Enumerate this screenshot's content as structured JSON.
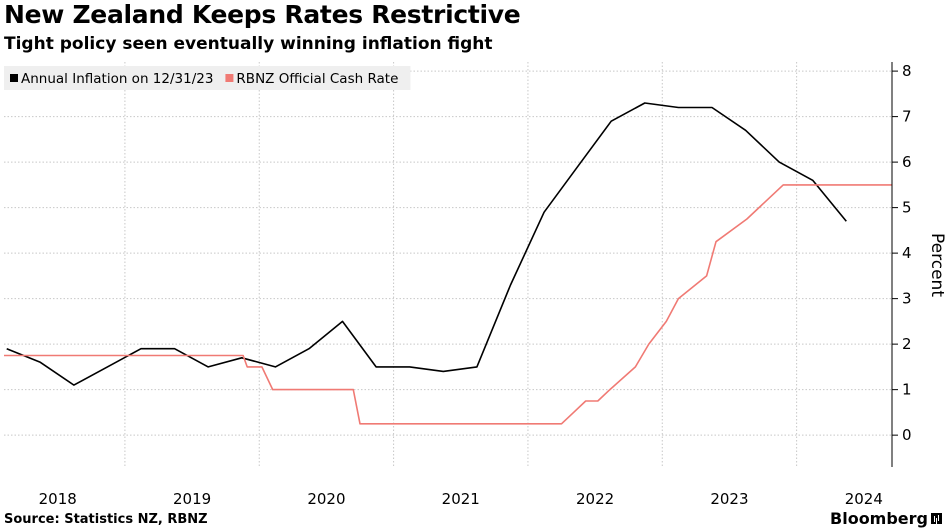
{
  "title": "New Zealand Keeps Rates Restrictive",
  "subtitle": "Tight policy seen eventually winning inflation fight",
  "source": "Source: Statistics NZ, RBNZ",
  "brand": "Bloomberg",
  "colors": {
    "inflation": "#000000",
    "cash_rate": "#f07a74",
    "grid": "#c8c8c8",
    "legend_bg": "#efefef"
  },
  "chart_data": {
    "type": "line",
    "ylabel": "Percent",
    "ylim": [
      -0.7,
      8.2
    ],
    "yticks": [
      0,
      1,
      2,
      3,
      4,
      5,
      6,
      7,
      8
    ],
    "xlim": [
      2017.6,
      2024.21
    ],
    "xticks": [
      2018,
      2019,
      2020,
      2021,
      2022,
      2023,
      2024
    ],
    "grid": true,
    "y_axis_position": "right",
    "legend_position": "top-left",
    "series": [
      {
        "name": "Annual Inflation on 12/31/23",
        "color": "#000000",
        "points": [
          [
            2017.62,
            1.9
          ],
          [
            2017.87,
            1.6
          ],
          [
            2018.12,
            1.1
          ],
          [
            2018.37,
            1.5
          ],
          [
            2018.62,
            1.9
          ],
          [
            2018.87,
            1.9
          ],
          [
            2019.12,
            1.5
          ],
          [
            2019.37,
            1.7
          ],
          [
            2019.62,
            1.5
          ],
          [
            2019.87,
            1.9
          ],
          [
            2020.12,
            2.5
          ],
          [
            2020.37,
            1.5
          ],
          [
            2020.62,
            1.5
          ],
          [
            2020.87,
            1.4
          ],
          [
            2021.12,
            1.5
          ],
          [
            2021.37,
            3.3
          ],
          [
            2021.62,
            4.9
          ],
          [
            2021.87,
            5.9
          ],
          [
            2022.12,
            6.9
          ],
          [
            2022.37,
            7.3
          ],
          [
            2022.62,
            7.2
          ],
          [
            2022.87,
            7.2
          ],
          [
            2023.12,
            6.7
          ],
          [
            2023.37,
            6.0
          ],
          [
            2023.62,
            5.6
          ],
          [
            2023.87,
            4.7
          ]
        ]
      },
      {
        "name": "RBNZ Official Cash Rate",
        "color": "#f07a74",
        "points": [
          [
            2017.6,
            1.75
          ],
          [
            2019.38,
            1.75
          ],
          [
            2019.41,
            1.5
          ],
          [
            2019.52,
            1.5
          ],
          [
            2019.6,
            1.0
          ],
          [
            2020.2,
            1.0
          ],
          [
            2020.25,
            0.25
          ],
          [
            2021.75,
            0.25
          ],
          [
            2021.84,
            0.5
          ],
          [
            2021.93,
            0.75
          ],
          [
            2022.02,
            0.75
          ],
          [
            2022.11,
            1.0
          ],
          [
            2022.3,
            1.5
          ],
          [
            2022.4,
            2.0
          ],
          [
            2022.53,
            2.5
          ],
          [
            2022.62,
            3.0
          ],
          [
            2022.83,
            3.5
          ],
          [
            2022.9,
            4.25
          ],
          [
            2023.13,
            4.75
          ],
          [
            2023.4,
            5.5
          ],
          [
            2024.21,
            5.5
          ]
        ]
      }
    ]
  }
}
